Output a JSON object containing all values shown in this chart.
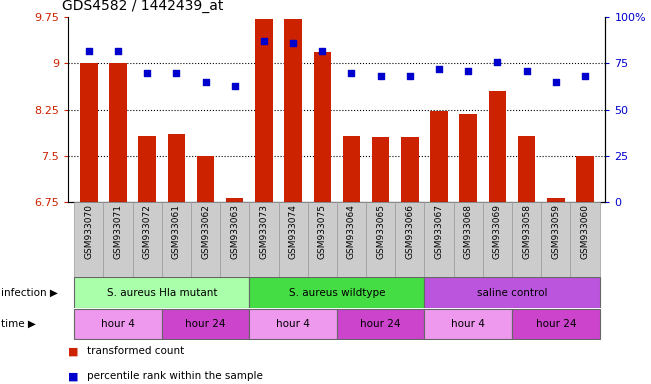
{
  "title": "GDS4582 / 1442439_at",
  "samples": [
    "GSM933070",
    "GSM933071",
    "GSM933072",
    "GSM933061",
    "GSM933062",
    "GSM933063",
    "GSM933073",
    "GSM933074",
    "GSM933075",
    "GSM933064",
    "GSM933065",
    "GSM933066",
    "GSM933067",
    "GSM933068",
    "GSM933069",
    "GSM933058",
    "GSM933059",
    "GSM933060"
  ],
  "transformed_count": [
    9.0,
    9.0,
    7.82,
    7.85,
    7.5,
    6.82,
    9.72,
    9.72,
    9.18,
    7.82,
    7.8,
    7.8,
    8.22,
    8.18,
    8.55,
    7.82,
    6.82,
    7.5
  ],
  "percentile_rank": [
    82,
    82,
    70,
    70,
    65,
    63,
    87,
    86,
    82,
    70,
    68,
    68,
    72,
    71,
    76,
    71,
    65,
    68
  ],
  "bar_color": "#cc2200",
  "dot_color": "#0000cc",
  "ylim_left": [
    6.75,
    9.75
  ],
  "ylim_right": [
    0,
    100
  ],
  "yticks_left": [
    6.75,
    7.5,
    8.25,
    9.0,
    9.75
  ],
  "ytick_labels_left": [
    "6.75",
    "7.5",
    "8.25",
    "9",
    "9.75"
  ],
  "yticks_right": [
    0,
    25,
    50,
    75,
    100
  ],
  "ytick_labels_right": [
    "0",
    "25",
    "50",
    "75",
    "100%"
  ],
  "hlines": [
    7.5,
    8.25,
    9.0
  ],
  "infection_groups": [
    {
      "label": "S. aureus Hla mutant",
      "start": 0,
      "end": 6,
      "color": "#aaffaa"
    },
    {
      "label": "S. aureus wildtype",
      "start": 6,
      "end": 12,
      "color": "#44dd44"
    },
    {
      "label": "saline control",
      "start": 12,
      "end": 18,
      "color": "#bb55dd"
    }
  ],
  "time_groups": [
    {
      "label": "hour 4",
      "start": 0,
      "end": 3,
      "color": "#ee99ee"
    },
    {
      "label": "hour 24",
      "start": 3,
      "end": 6,
      "color": "#cc44cc"
    },
    {
      "label": "hour 4",
      "start": 6,
      "end": 9,
      "color": "#ee99ee"
    },
    {
      "label": "hour 24",
      "start": 9,
      "end": 12,
      "color": "#cc44cc"
    },
    {
      "label": "hour 4",
      "start": 12,
      "end": 15,
      "color": "#ee99ee"
    },
    {
      "label": "hour 24",
      "start": 15,
      "end": 18,
      "color": "#cc44cc"
    }
  ],
  "infection_label": "infection",
  "time_label": "time",
  "legend_bar_label": "transformed count",
  "legend_dot_label": "percentile rank within the sample",
  "bg_color": "#ffffff",
  "plot_bg_color": "#ffffff",
  "xtick_bg_color": "#cccccc",
  "tick_color_left": "#cc2200",
  "tick_color_right": "#0000cc",
  "border_color": "#000000"
}
